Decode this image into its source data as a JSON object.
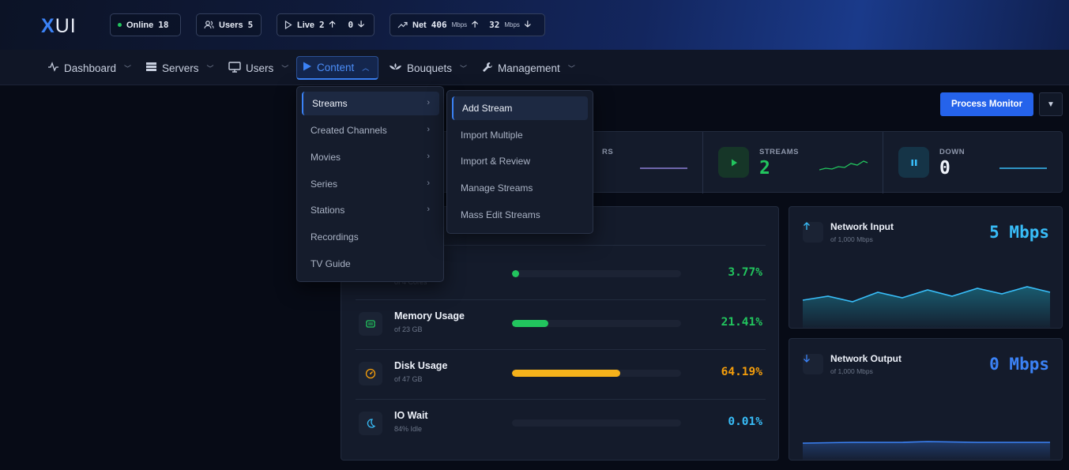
{
  "brand": {
    "logo_x": "X",
    "logo_ui": "UI"
  },
  "status": {
    "online": {
      "label": "Online",
      "value": "18"
    },
    "users": {
      "label": "Users",
      "value": "5"
    },
    "live": {
      "label": "Live",
      "up": "2",
      "down": "0"
    },
    "net": {
      "label": "Net",
      "in": "406",
      "in_unit": "Mbps",
      "out": "32",
      "out_unit": "Mbps"
    }
  },
  "nav": {
    "dashboard": "Dashboard",
    "servers": "Servers",
    "users": "Users",
    "content": "Content",
    "bouquets": "Bouquets",
    "management": "Management"
  },
  "content_menu": {
    "items": [
      "Streams",
      "Created Channels",
      "Movies",
      "Series",
      "Stations",
      "Recordings",
      "TV Guide"
    ]
  },
  "streams_submenu": {
    "items": [
      "Add Stream",
      "Import Multiple",
      "Import & Review",
      "Manage Streams",
      "Mass Edit Streams"
    ]
  },
  "toolbar": {
    "process_monitor": "Process Monitor"
  },
  "stats": {
    "partial_label": "RS",
    "streams": {
      "label": "STREAMS",
      "value": "2"
    },
    "down": {
      "label": "DOWN",
      "value": "0"
    }
  },
  "resources": {
    "title_fragment": "g",
    "cpu": {
      "name_fragment": "e",
      "sub_fragment": "of 4 Cores",
      "value": "3.77%",
      "fraction": 0.0377
    },
    "memory": {
      "name": "Memory Usage",
      "sub": "of 23 GB",
      "value": "21.41%",
      "fraction": 0.2141
    },
    "disk": {
      "name": "Disk Usage",
      "sub": "of 47 GB",
      "value": "64.19%",
      "fraction": 0.6419
    },
    "io": {
      "name": "IO Wait",
      "sub": "84% Idle",
      "value": "0.01%",
      "fraction": 0.0001
    }
  },
  "network": {
    "input": {
      "title": "Network Input",
      "sub": "of 1,000 Mbps",
      "value": "5 Mbps"
    },
    "output": {
      "title": "Network Output",
      "sub": "of 1,000 Mbps",
      "value": "0 Mbps"
    }
  },
  "colors": {
    "accent": "#3b82f6",
    "green": "#22c55e",
    "amber": "#f59e0b",
    "cyan": "#38bdf8",
    "blue_value": "#3b82f6"
  }
}
